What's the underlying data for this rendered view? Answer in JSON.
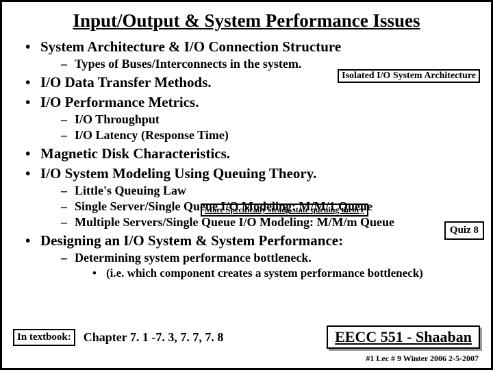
{
  "title": "Input/Output & System Performance Issues",
  "bullets": {
    "b1_0": "System Architecture & I/O Connection Structure",
    "b2_0": "Types of Buses/Interconnects in the system.",
    "b1_1": "I/O Data Transfer Methods.",
    "b1_2": "I/O Performance Metrics.",
    "b2_1": "I/O Throughput",
    "b2_2": "I/O Latency (Response Time)",
    "b1_3": "Magnetic Disk Characteristics.",
    "b1_4": "I/O System Modeling Using Queuing Theory.",
    "b2_3": "Little's Queuing Law",
    "b2_4": "Single Server/Single Queue I/O Modeling: M/M/1 Queue",
    "b2_5": "Multiple Servers/Single Queue I/O Modeling: M/M/m Queue",
    "b1_5": "Designing an I/O System & System Performance:",
    "b2_6": "Determining system performance bottleneck.",
    "b3_0": "(i.e. which component creates a system performance bottleneck)"
  },
  "callouts": {
    "iso": "Isolated I/O System Architecture",
    "steady": "More Specifically steady state queuing theory",
    "quiz": "Quiz 8"
  },
  "footer": {
    "textbook_label": "In textbook:",
    "chapter": "Chapter  7. 1 -7. 3,   7. 7,  7. 8",
    "course": "EECC 551 - Shaaban",
    "lecline": "#1   Lec # 9  Winter 2006  2-5-2007"
  },
  "colors": {
    "border": "#000000",
    "background": "#ffffff",
    "shadow": "#999999"
  }
}
